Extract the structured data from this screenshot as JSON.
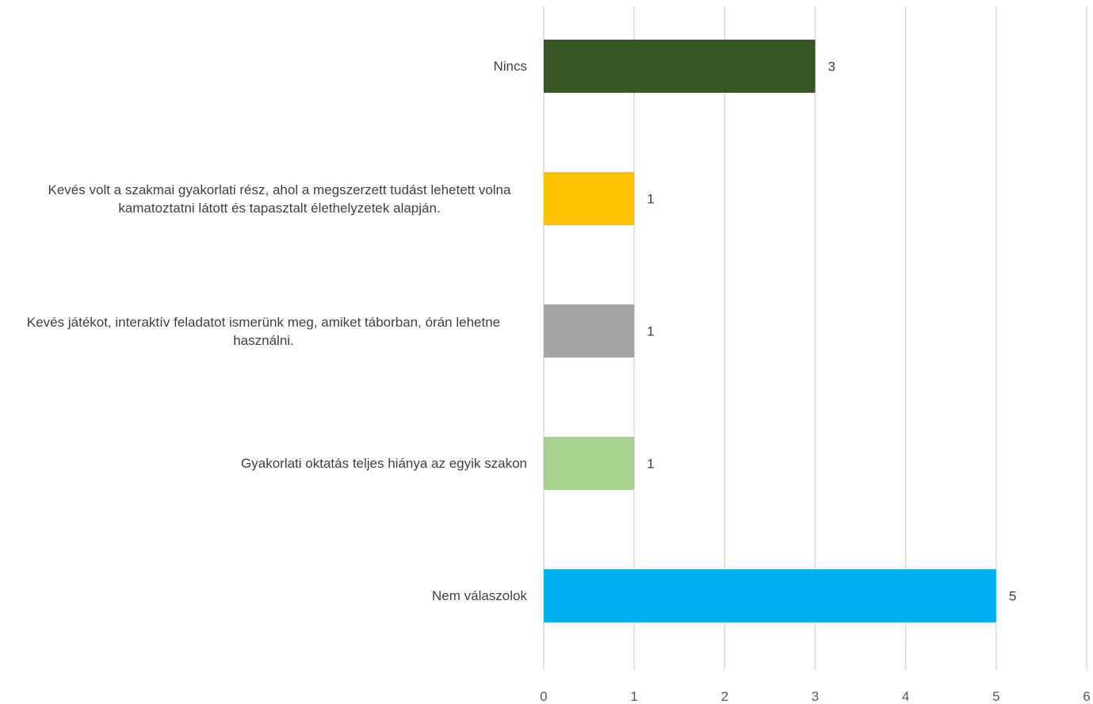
{
  "chart_data": {
    "type": "bar",
    "orientation": "horizontal",
    "categories": [
      "Nincs",
      "Kevés volt a szakmai gyakorlati rész, ahol a megszerzett tudást lehetett volna kamatoztatni látott és tapasztalt élethelyzetek alapján.",
      "Kevés játékot, interaktív feladatot ismerünk meg, amiket táborban, órán lehetne használni.",
      "Gyakorlati oktatás teljes hiánya az egyik szakon",
      "Nem válaszolok"
    ],
    "values": [
      3,
      1,
      1,
      1,
      5
    ],
    "data_labels": [
      "3",
      "1",
      "1",
      "1",
      "5"
    ],
    "colors": [
      "#375623",
      "#FFC000",
      "#A5A5A5",
      "#A9D18E",
      "#00B0F0"
    ],
    "xlim": [
      0,
      6
    ],
    "x_ticks": [
      "0",
      "1",
      "2",
      "3",
      "4",
      "5",
      "6"
    ],
    "grid": true,
    "legend": "none"
  }
}
